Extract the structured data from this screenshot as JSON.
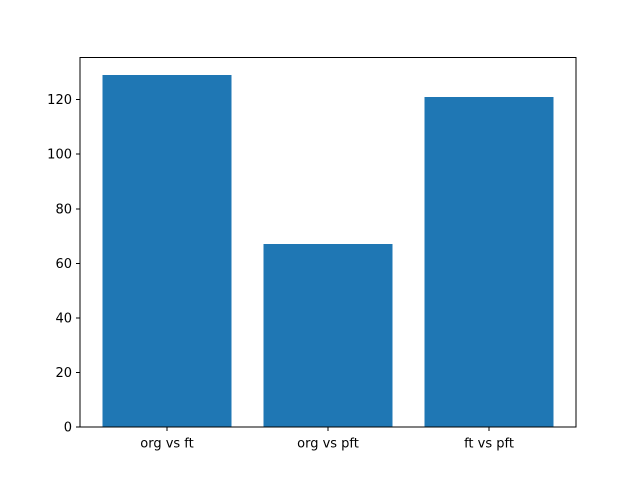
{
  "chart_data": {
    "type": "bar",
    "title": "",
    "xlabel": "",
    "ylabel": "",
    "categories": [
      "org vs ft",
      "org vs pft",
      "ft vs pft"
    ],
    "values": [
      129,
      67,
      121
    ],
    "yticks": [
      0,
      20,
      40,
      60,
      80,
      100,
      120
    ],
    "ytick_labels": [
      "0",
      "20",
      "40",
      "60",
      "80",
      "100",
      "120"
    ],
    "xlim": [
      -0.54,
      2.54
    ],
    "ylim": [
      0,
      135.45
    ],
    "bar_width": 0.8,
    "bar_color": "#1f77b4",
    "axis_color": "#000000",
    "text_color": "#000000",
    "background_color": "#ffffff",
    "grid": false,
    "legend": false
  }
}
